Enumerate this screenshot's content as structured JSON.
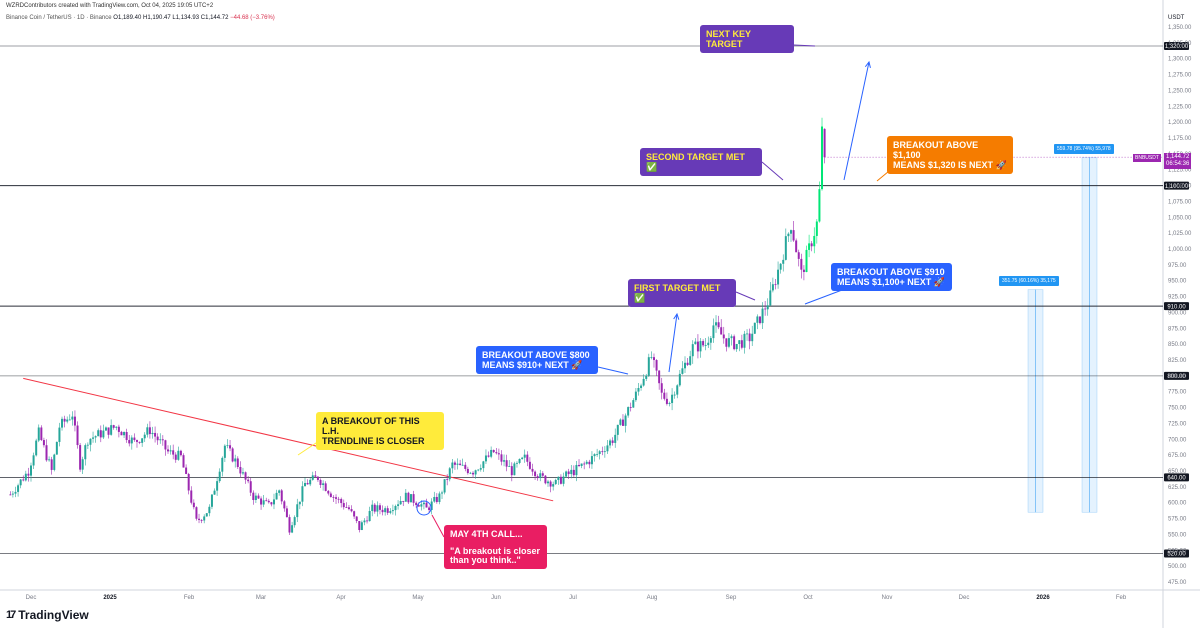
{
  "header": {
    "credit": "WZRDContributors created with TradingView.com, Oct 04, 2025 19:05 UTC+2",
    "symbol": "Binance Coin / TetherUS · 1D · Binance",
    "open": "O1,189.40",
    "high": "H1,190.47",
    "low": "L1,134.93",
    "close": "C1,144.72",
    "change": "−44.68 (−3.76%)"
  },
  "axis": {
    "unit": "USDT",
    "y_ticks": [
      "475.00",
      "500.00",
      "525.00",
      "550.00",
      "575.00",
      "600.00",
      "625.00",
      "650.00",
      "675.00",
      "700.00",
      "725.00",
      "750.00",
      "775.00",
      "800.00",
      "825.00",
      "850.00",
      "875.00",
      "900.00",
      "925.00",
      "950.00",
      "975.00",
      "1,000.00",
      "1,025.00",
      "1,050.00",
      "1,075.00",
      "1,100.00",
      "1,125.00",
      "1,150.00",
      "1,175.00",
      "1,200.00",
      "1,225.00",
      "1,250.00",
      "1,275.00",
      "1,300.00",
      "1,325.00",
      "1,350.00"
    ],
    "x_ticks": [
      {
        "label": "Dec",
        "x": 31,
        "bold": false
      },
      {
        "label": "2025",
        "x": 110,
        "bold": true
      },
      {
        "label": "Feb",
        "x": 189,
        "bold": false
      },
      {
        "label": "Mar",
        "x": 261,
        "bold": false
      },
      {
        "label": "Apr",
        "x": 341,
        "bold": false
      },
      {
        "label": "May",
        "x": 418,
        "bold": false
      },
      {
        "label": "Jun",
        "x": 496,
        "bold": false
      },
      {
        "label": "Jul",
        "x": 573,
        "bold": false
      },
      {
        "label": "Aug",
        "x": 652,
        "bold": false
      },
      {
        "label": "Sep",
        "x": 731,
        "bold": false
      },
      {
        "label": "Oct",
        "x": 808,
        "bold": false
      },
      {
        "label": "Nov",
        "x": 887,
        "bold": false
      },
      {
        "label": "Dec",
        "x": 964,
        "bold": false
      },
      {
        "label": "2026",
        "x": 1043,
        "bold": true
      },
      {
        "label": "Feb",
        "x": 1121,
        "bold": false
      }
    ]
  },
  "chart_data": {
    "type": "candlestick",
    "title": "Binance Coin / TetherUS · 1D · Binance",
    "ylabel": "USDT",
    "ylim": [
      470,
      1365
    ],
    "x_range": [
      "2024-11-23",
      "2026-02-28"
    ],
    "levels": [
      {
        "value": 1320,
        "label": "1,320.00"
      },
      {
        "value": 1100,
        "label": "1,100.00"
      },
      {
        "value": 910,
        "label": "910.00"
      },
      {
        "value": 800,
        "label": "800.00"
      },
      {
        "value": 640,
        "label": "640.00"
      },
      {
        "value": 520,
        "label": "520.00"
      }
    ],
    "trendline": {
      "from": [
        "2024-11-28",
        796
      ],
      "to": [
        "2025-06-21",
        603
      ],
      "color": "#f23645"
    },
    "waypoints": [
      [
        "2024-11-23",
        613
      ],
      [
        "2024-11-30",
        650
      ],
      [
        "2024-12-04",
        710
      ],
      [
        "2024-12-09",
        650
      ],
      [
        "2024-12-12",
        720
      ],
      [
        "2024-12-17",
        740
      ],
      [
        "2024-12-20",
        660
      ],
      [
        "2024-12-23",
        700
      ],
      [
        "2025-01-03",
        720
      ],
      [
        "2025-01-10",
        695
      ],
      [
        "2025-01-16",
        715
      ],
      [
        "2025-01-23",
        680
      ],
      [
        "2025-01-28",
        672
      ],
      [
        "2025-02-03",
        570
      ],
      [
        "2025-02-08",
        590
      ],
      [
        "2025-02-14",
        690
      ],
      [
        "2025-02-19",
        660
      ],
      [
        "2025-02-25",
        610
      ],
      [
        "2025-03-03",
        595
      ],
      [
        "2025-03-07",
        620
      ],
      [
        "2025-03-11",
        560
      ],
      [
        "2025-03-17",
        630
      ],
      [
        "2025-03-22",
        640
      ],
      [
        "2025-03-28",
        610
      ],
      [
        "2025-04-03",
        590
      ],
      [
        "2025-04-07",
        560
      ],
      [
        "2025-04-12",
        590
      ],
      [
        "2025-04-18",
        590
      ],
      [
        "2025-04-25",
        610
      ],
      [
        "2025-04-30",
        600
      ],
      [
        "2025-05-03",
        590
      ],
      [
        "2025-05-08",
        610
      ],
      [
        "2025-05-13",
        660
      ],
      [
        "2025-05-21",
        650
      ],
      [
        "2025-05-29",
        680
      ],
      [
        "2025-06-05",
        650
      ],
      [
        "2025-06-10",
        670
      ],
      [
        "2025-06-16",
        640
      ],
      [
        "2025-06-22",
        630
      ],
      [
        "2025-06-25",
        640
      ],
      [
        "2025-07-03",
        660
      ],
      [
        "2025-07-09",
        680
      ],
      [
        "2025-07-14",
        700
      ],
      [
        "2025-07-18",
        730
      ],
      [
        "2025-07-23",
        770
      ],
      [
        "2025-07-29",
        830
      ],
      [
        "2025-08-02",
        770
      ],
      [
        "2025-08-05",
        760
      ],
      [
        "2025-08-09",
        800
      ],
      [
        "2025-08-14",
        845
      ],
      [
        "2025-08-19",
        850
      ],
      [
        "2025-08-22",
        880
      ],
      [
        "2025-08-27",
        855
      ],
      [
        "2025-08-31",
        850
      ],
      [
        "2025-09-05",
        860
      ],
      [
        "2025-09-10",
        900
      ],
      [
        "2025-09-13",
        925
      ],
      [
        "2025-09-17",
        980
      ],
      [
        "2025-09-21",
        1040
      ],
      [
        "2025-09-25",
        960
      ],
      [
        "2025-09-28",
        1000
      ],
      [
        "2025-10-01",
        1040
      ],
      [
        "2025-10-02",
        1090
      ],
      [
        "2025-10-03",
        1185
      ],
      [
        "2025-10-04",
        1145
      ]
    ],
    "last": {
      "symbol": "BNBUSDT",
      "price": "1,144.72",
      "countdown": "06:54:36"
    },
    "ranges": [
      {
        "label": "351.75 (60.16%) 35,175",
        "from": 585,
        "to": 936
      },
      {
        "label": "559.78 (95.74%) 55,978",
        "from": 585,
        "to": 1144
      }
    ],
    "colors": {
      "up": "#26a69a",
      "up_bright": "#00e676",
      "down": "#9c27b0",
      "level": "#131722",
      "range": "#2196f3"
    }
  },
  "callouts": {
    "next_key": "NEXT KEY TARGET",
    "second": "SECOND TARGET MET ✅",
    "breakout_1100": "BREAKOUT ABOVE $1,100\nMEANS $1,320 IS NEXT 🚀",
    "first": "FIRST TARGET MET ✅",
    "breakout_910": "BREAKOUT ABOVE $910\nMEANS $1,100+ NEXT 🚀",
    "breakout_800": "BREAKOUT ABOVE $800\nMEANS $910+ NEXT 🚀",
    "trendline": "A BREAKOUT OF THIS L.H.\nTRENDLINE IS CLOSER",
    "may_title": "MAY 4TH CALL...",
    "may_quote": "\"A breakout is closer\nthan you think..\""
  },
  "brand": {
    "name": "TradingView",
    "mark": "17"
  }
}
